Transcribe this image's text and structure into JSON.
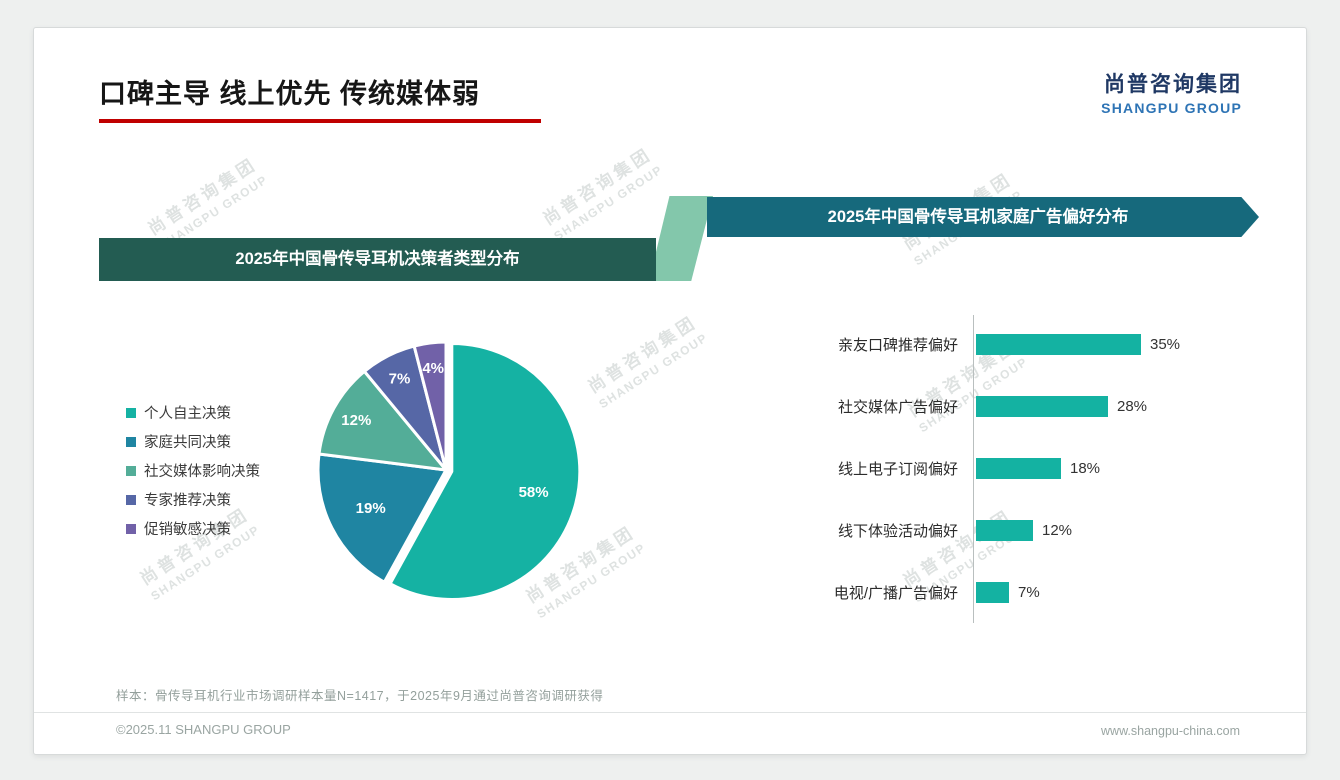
{
  "slide": {
    "title": "口碑主导 线上优先 传统媒体弱",
    "logo_cn": "尚普咨询集团",
    "logo_en": "SHANGPU GROUP",
    "footnote": "样本：骨传导耳机行业市场调研样本量N=1417，于2025年9月通过尚普咨询调研获得",
    "footer_left": "©2025.11 SHANGPU GROUP",
    "footer_right": "www.shangpu-china.com"
  },
  "watermark": {
    "line1": "尚普咨询集团",
    "line2": "SHANGPU GROUP"
  },
  "theme": {
    "title_underline": "#c00000",
    "logo_navy": "#1f3864",
    "logo_blue": "#2e74b5",
    "left_banner_bg": "#235c52",
    "right_banner_bg": "#16697c",
    "connector_green": "#83c7ab",
    "bar_teal": "#14b2a2",
    "watermark_gray": "#9aa6a4"
  },
  "chart_data": [
    {
      "type": "pie",
      "title": "2025年中国骨传导耳机决策者类型分布",
      "legend_position": "left",
      "legend": [
        "个人自主决策",
        "家庭共同决策",
        "社交媒体影响决策",
        "专家推荐决策",
        "促销敏感决策"
      ],
      "values": [
        58,
        19,
        12,
        7,
        4
      ],
      "data_labels": [
        "58%",
        "19%",
        "12%",
        "7%",
        "4%"
      ],
      "colors": [
        "#15b2a3",
        "#1f85a2",
        "#53ad98",
        "#5667a6",
        "#7161a8"
      ],
      "unit": "%",
      "start_angle_deg": 0,
      "clockwise": true
    },
    {
      "type": "bar",
      "orientation": "horizontal",
      "title": "2025年中国骨传导耳机家庭广告偏好分布",
      "categories": [
        "亲友口碑推荐偏好",
        "社交媒体广告偏好",
        "线上电子订阅偏好",
        "线下体验活动偏好",
        "电视/广播广告偏好"
      ],
      "values": [
        35,
        28,
        18,
        12,
        7
      ],
      "value_labels": [
        "35%",
        "28%",
        "18%",
        "12%",
        "7%"
      ],
      "bar_color": "#14b2a2",
      "unit": "%",
      "xlim": [
        0,
        40
      ],
      "grid": false,
      "legend_position": "none"
    }
  ]
}
